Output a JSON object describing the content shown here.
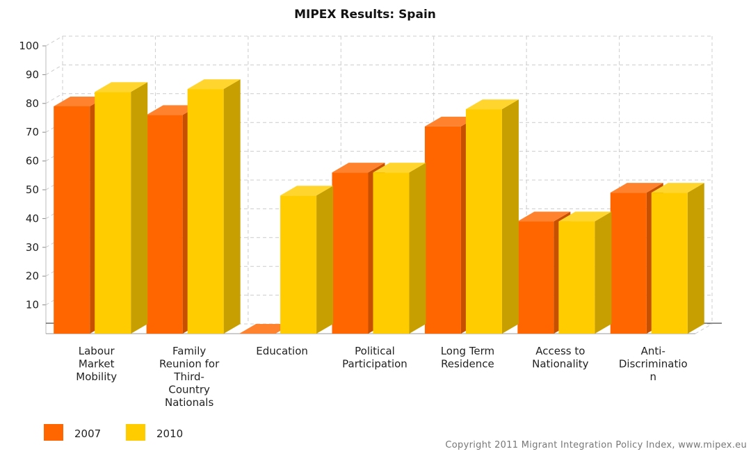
{
  "chart_data": {
    "type": "bar",
    "title": "MIPEX Results: Spain",
    "xlabel": "",
    "ylabel": "",
    "ylim": [
      0,
      100
    ],
    "yticks": [
      10,
      20,
      30,
      40,
      50,
      60,
      70,
      80,
      90,
      100
    ],
    "grid": true,
    "legend_position": "bottom-left",
    "categories": [
      [
        "Labour",
        "Market",
        "Mobility"
      ],
      [
        "Family",
        "Reunion for",
        "Third-",
        "Country",
        "Nationals"
      ],
      [
        "Education"
      ],
      [
        "Political",
        "Participation"
      ],
      [
        "Long Term",
        "Residence"
      ],
      [
        "Access to",
        "Nationality"
      ],
      [
        "Anti-",
        "Discriminatio",
        "n"
      ]
    ],
    "series": [
      {
        "name": "2007",
        "values": [
          79,
          76,
          0,
          56,
          72,
          39,
          49
        ],
        "color": "#FF6600"
      },
      {
        "name": "2010",
        "values": [
          84,
          85,
          48,
          56,
          78,
          39,
          49
        ],
        "color": "#FFCC00"
      }
    ]
  },
  "footer": {
    "copyright": "Copyright 2011 Migrant Integration Policy Index, www.mipex.eu"
  }
}
